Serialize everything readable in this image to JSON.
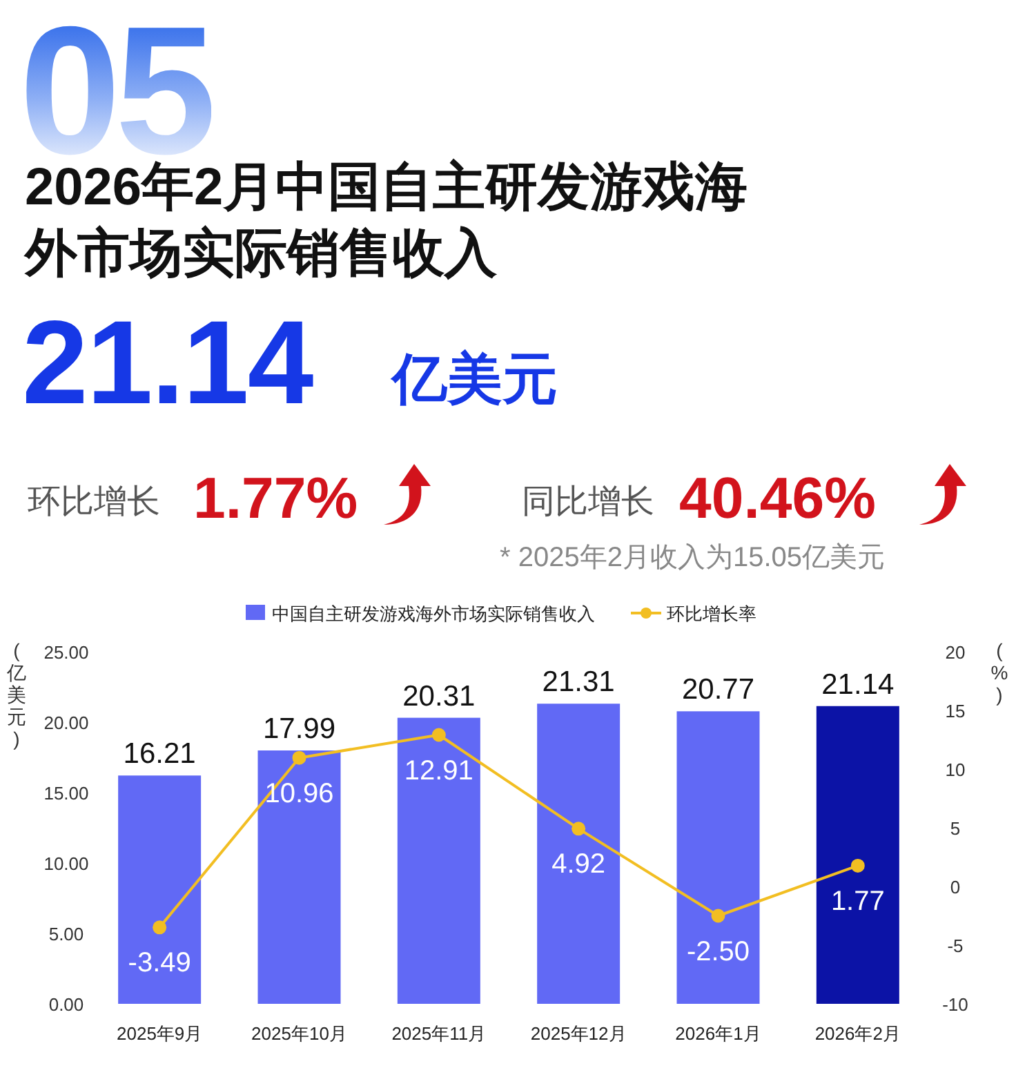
{
  "chart_data": [
    {
      "type": "other",
      "title": "2026年2月中国自主研发游戏海外市场实际销售收入",
      "annotations": [
        "05",
        "21.14",
        "亿美元",
        "环比增长",
        "1.77%",
        "同比增长",
        "40.46%",
        "* 2025年2月收入为15.05亿美元"
      ]
    },
    {
      "type": "bar",
      "categories": [
        "2025年9月",
        "2025年10月",
        "2025年11月",
        "2025年12月",
        "2026年1月",
        "2026年2月"
      ],
      "series": [
        {
          "name": "中国自主研发游戏海外市场实际销售收入",
          "type": "bar",
          "color": "#6169f5",
          "colors": [
            "#6169f5",
            "#6169f5",
            "#6169f5",
            "#6169f5",
            "#6169f5",
            "#0c13a6"
          ],
          "values": [
            16.21,
            17.99,
            20.31,
            21.31,
            20.77,
            21.14
          ]
        },
        {
          "name": "环比增长率",
          "type": "line",
          "axis": "y2",
          "color": "#f2be22",
          "values": [
            -3.49,
            10.96,
            12.91,
            4.92,
            -2.5,
            1.77
          ],
          "value_labels": [
            "-3.49",
            "10.96",
            "12.91",
            "4.92",
            "-2.50",
            "1.77"
          ]
        }
      ],
      "ylabel": "(亿美元)",
      "y2label": "(%)",
      "ylim": [
        0,
        25
      ],
      "yticks": [
        {
          "value": 0,
          "label": "0.00"
        },
        {
          "value": 5,
          "label": "5.00"
        },
        {
          "value": 10,
          "label": "10.00"
        },
        {
          "value": 15,
          "label": "15.00"
        },
        {
          "value": 20,
          "label": "20.00"
        },
        {
          "value": 25,
          "label": "25.00"
        }
      ],
      "y2lim": [
        -10,
        20
      ],
      "y2ticks": [
        -10,
        -5,
        0,
        5,
        10,
        15,
        20
      ],
      "data_labels": true,
      "legend": "top",
      "grid": false,
      "marker": "circle",
      "line_style": "solid"
    }
  ]
}
